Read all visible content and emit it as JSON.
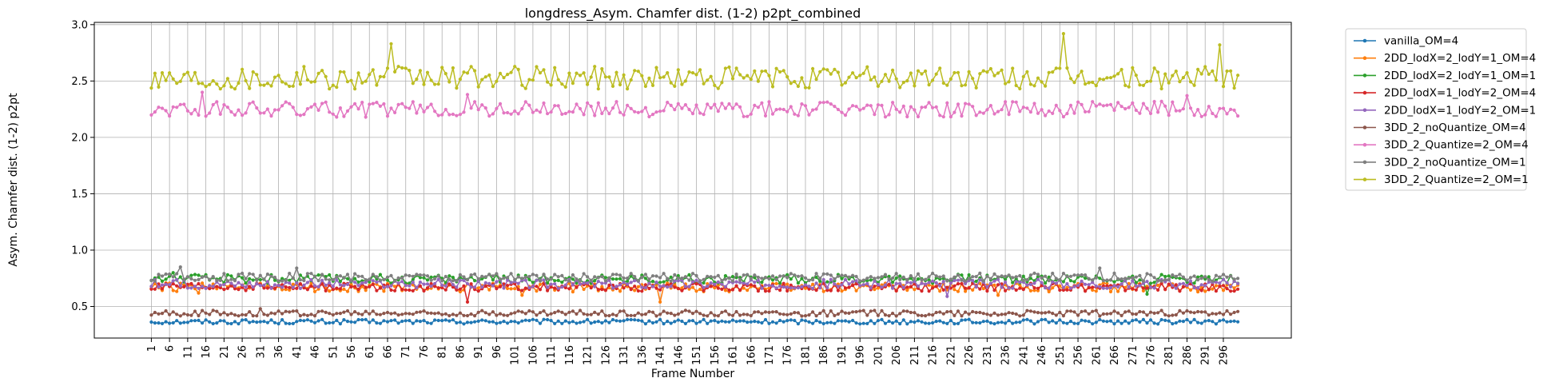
{
  "chart_data": {
    "type": "line",
    "title": "longdress_Asym. Chamfer dist. (1-2) p2pt_combined",
    "xlabel": "Frame Number",
    "ylabel": "Asym. Chamfer dist. (1-2) p2pt",
    "xlim": [
      -14.7,
      314.7
    ],
    "ylim": [
      0.22,
      3.02
    ],
    "yticks": [
      0.5,
      1.0,
      1.5,
      2.0,
      2.5,
      3.0
    ],
    "ytick_labels": [
      "0.5",
      "1.0",
      "1.5",
      "2.0",
      "2.5",
      "3.0"
    ],
    "xticks": [
      1,
      6,
      11,
      16,
      21,
      26,
      31,
      36,
      41,
      46,
      51,
      56,
      61,
      66,
      71,
      76,
      81,
      86,
      91,
      96,
      101,
      106,
      111,
      116,
      121,
      126,
      131,
      136,
      141,
      146,
      151,
      156,
      161,
      166,
      171,
      176,
      181,
      186,
      191,
      196,
      201,
      206,
      211,
      216,
      221,
      226,
      231,
      236,
      241,
      246,
      251,
      256,
      261,
      266,
      271,
      276,
      281,
      286,
      291,
      296
    ],
    "xtick_labels": [
      "1",
      "6",
      "11",
      "16",
      "21",
      "26",
      "31",
      "36",
      "41",
      "46",
      "51",
      "56",
      "61",
      "66",
      "71",
      "76",
      "81",
      "86",
      "91",
      "96",
      "101",
      "106",
      "111",
      "116",
      "121",
      "126",
      "131",
      "136",
      "141",
      "146",
      "151",
      "156",
      "161",
      "166",
      "171",
      "176",
      "181",
      "186",
      "191",
      "196",
      "201",
      "206",
      "211",
      "216",
      "221",
      "226",
      "231",
      "236",
      "241",
      "246",
      "251",
      "256",
      "261",
      "266",
      "271",
      "276",
      "281",
      "286",
      "291",
      "296"
    ],
    "grid": true,
    "legend_position": "outside-right",
    "x_range": [
      1,
      300
    ],
    "series": [
      {
        "name": "vanilla_OM=4",
        "color": "#1f77b4",
        "base": 0.365,
        "amplitude": 0.02,
        "spikes": []
      },
      {
        "name": "2DD_lodX=2_lodY=1_OM=4",
        "color": "#ff7f0e",
        "base": 0.67,
        "amplitude": 0.04,
        "spikes": [
          {
            "x": 14,
            "y": 0.62
          },
          {
            "x": 103,
            "y": 0.6
          },
          {
            "x": 141,
            "y": 0.54
          },
          {
            "x": 234,
            "y": 0.6
          }
        ]
      },
      {
        "name": "2DD_lodX=2_lodY=1_OM=1",
        "color": "#2ca02c",
        "base": 0.745,
        "amplitude": 0.04,
        "spikes": [
          {
            "x": 7,
            "y": 0.8
          },
          {
            "x": 275,
            "y": 0.61
          }
        ]
      },
      {
        "name": "2DD_lodX=1_lodY=2_OM=4",
        "color": "#d62728",
        "base": 0.67,
        "amplitude": 0.035,
        "spikes": [
          {
            "x": 88,
            "y": 0.54
          }
        ]
      },
      {
        "name": "2DD_lodX=1_lodY=2_OM=1",
        "color": "#9467bd",
        "base": 0.7,
        "amplitude": 0.04,
        "spikes": [
          {
            "x": 220,
            "y": 0.59
          }
        ]
      },
      {
        "name": "3DD_2_noQuantize_OM=4",
        "color": "#8c564b",
        "base": 0.44,
        "amplitude": 0.025,
        "spikes": [
          {
            "x": 31,
            "y": 0.48
          }
        ]
      },
      {
        "name": "3DD_2_Quantize=2_OM=4",
        "color": "#e377c2",
        "base": 2.25,
        "amplitude": 0.07,
        "spikes": [
          {
            "x": 15,
            "y": 2.4
          },
          {
            "x": 88,
            "y": 2.38
          },
          {
            "x": 286,
            "y": 2.37
          }
        ]
      },
      {
        "name": "3DD_2_noQuantize_OM=1",
        "color": "#7f7f7f",
        "base": 0.76,
        "amplitude": 0.035,
        "spikes": [
          {
            "x": 9,
            "y": 0.85
          },
          {
            "x": 41,
            "y": 0.84
          },
          {
            "x": 262,
            "y": 0.84
          }
        ]
      },
      {
        "name": "3DD_2_Quantize=2_OM=1",
        "color": "#bcbd22",
        "base": 2.53,
        "amplitude": 0.1,
        "spikes": [
          {
            "x": 67,
            "y": 2.83
          },
          {
            "x": 252,
            "y": 2.92
          },
          {
            "x": 295,
            "y": 2.82
          }
        ]
      }
    ]
  }
}
